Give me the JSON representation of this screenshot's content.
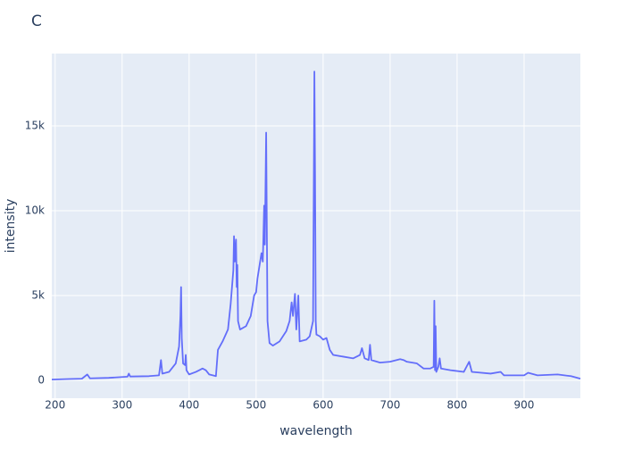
{
  "chart_data": {
    "type": "line",
    "title": "C",
    "x_label": "wavelength",
    "y_label": "intensity",
    "x": [
      195,
      220,
      240,
      248,
      252,
      280,
      300,
      308,
      310,
      312,
      340,
      355,
      358,
      360,
      370,
      380,
      385,
      387,
      388,
      389,
      391,
      394,
      395,
      396,
      400,
      410,
      415,
      420,
      425,
      430,
      440,
      443,
      450,
      458,
      462,
      466,
      467,
      468,
      470,
      471,
      472,
      473,
      476,
      485,
      492,
      497,
      500,
      502,
      508,
      510,
      512,
      513,
      515,
      516,
      517,
      520,
      525,
      535,
      545,
      550,
      553,
      555,
      558,
      560,
      563,
      565,
      575,
      580,
      585,
      587,
      588,
      589,
      590,
      595,
      600,
      605,
      610,
      615,
      630,
      645,
      655,
      658,
      662,
      668,
      670,
      672,
      685,
      700,
      715,
      720,
      725,
      740,
      750,
      760,
      765,
      766,
      767,
      768,
      769,
      772,
      774,
      776,
      790,
      810,
      818,
      822,
      850,
      865,
      870,
      900,
      906,
      920,
      950,
      970,
      984
    ],
    "values": [
      50,
      80,
      100,
      350,
      120,
      150,
      200,
      220,
      400,
      230,
      250,
      300,
      1200,
      400,
      500,
      1000,
      2000,
      3800,
      5500,
      2500,
      1000,
      900,
      1500,
      600,
      350,
      500,
      600,
      700,
      600,
      350,
      250,
      1800,
      2300,
      3000,
      4500,
      6500,
      8500,
      7000,
      8300,
      5500,
      6800,
      3500,
      3000,
      3200,
      3800,
      5000,
      5200,
      6000,
      7500,
      7000,
      10300,
      8000,
      14600,
      9000,
      3500,
      2200,
      2050,
      2300,
      2900,
      3500,
      4600,
      3800,
      5100,
      3000,
      5000,
      2300,
      2400,
      2600,
      3500,
      18200,
      12000,
      3500,
      2700,
      2600,
      2400,
      2500,
      1800,
      1500,
      1400,
      1300,
      1500,
      1900,
      1300,
      1200,
      2100,
      1200,
      1050,
      1100,
      1250,
      1200,
      1100,
      1000,
      700,
      700,
      800,
      4700,
      600,
      3200,
      500,
      800,
      1300,
      700,
      600,
      500,
      1100,
      500,
      400,
      500,
      300,
      300,
      450,
      300,
      350,
      250,
      100
    ],
    "color": "#636efa",
    "xlim": [
      195,
      984
    ],
    "ylim": [
      -1050,
      19260
    ],
    "xticks": [
      200,
      300,
      400,
      500,
      600,
      700,
      800,
      900
    ],
    "yticks": [
      0,
      {
        "value": 5000,
        "label": "5k"
      },
      {
        "value": 10000,
        "label": "10k"
      },
      {
        "value": 15000,
        "label": "15k"
      }
    ],
    "grid": true
  }
}
